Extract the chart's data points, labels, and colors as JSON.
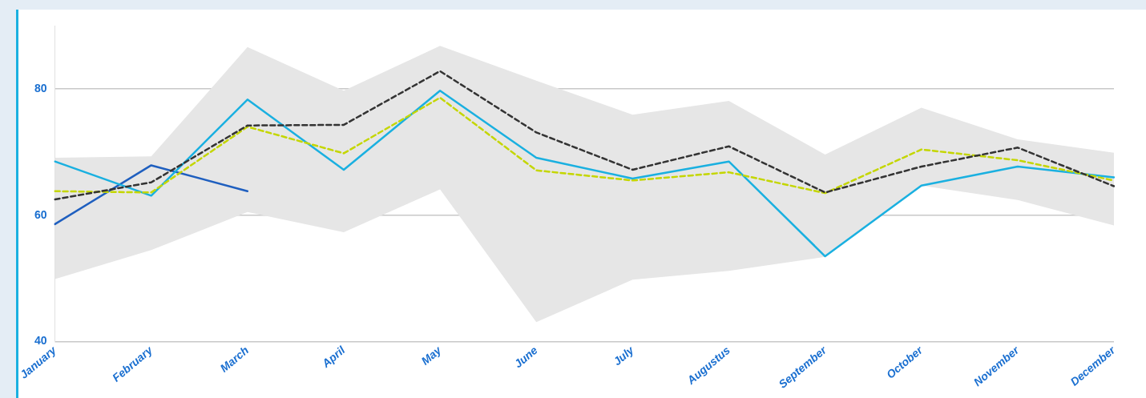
{
  "chart_data": {
    "type": "line",
    "categories": [
      "January",
      "February",
      "March",
      "April",
      "May",
      "June",
      "July",
      "Augustus",
      "September",
      "October",
      "November",
      "December"
    ],
    "series": [
      {
        "color": "#333333",
        "line_style": "dashed",
        "values": [
          62.5,
          65.2,
          74.2,
          74.3,
          82.8,
          73.1,
          67.2,
          70.9,
          63.6,
          67.7,
          70.7,
          64.6
        ],
        "lower": [
          49.9,
          54.5,
          60.5,
          57.3,
          64.1,
          43.1,
          49.8,
          51.2,
          53.4,
          64.7,
          62.4,
          58.4
        ],
        "upper": [
          69.1,
          69.3,
          86.6,
          79.7,
          86.8,
          81.3,
          75.9,
          78.1,
          69.6,
          77.0,
          72.0,
          69.9
        ]
      },
      {
        "color": "#c4d600",
        "line_style": "dashed",
        "values": [
          63.8,
          63.6,
          74.0,
          69.8,
          78.6,
          67.1,
          65.5,
          66.8,
          63.5,
          70.4,
          68.7,
          65.5
        ]
      },
      {
        "color": "#1ab0e0",
        "line_style": "solid",
        "values": [
          68.5,
          63.1,
          78.3,
          67.2,
          79.7,
          69.1,
          65.8,
          68.5,
          53.5,
          64.7,
          67.7,
          66.0
        ]
      },
      {
        "color": "#1f5fbf",
        "line_style": "solid",
        "values": [
          58.6,
          67.9,
          63.8,
          null,
          null,
          null,
          null,
          null,
          null,
          null,
          null,
          null
        ]
      }
    ],
    "ylim": [
      40,
      90
    ],
    "yticks": [
      40,
      60,
      80
    ],
    "grid": "y",
    "legend": false,
    "marker": "none"
  }
}
